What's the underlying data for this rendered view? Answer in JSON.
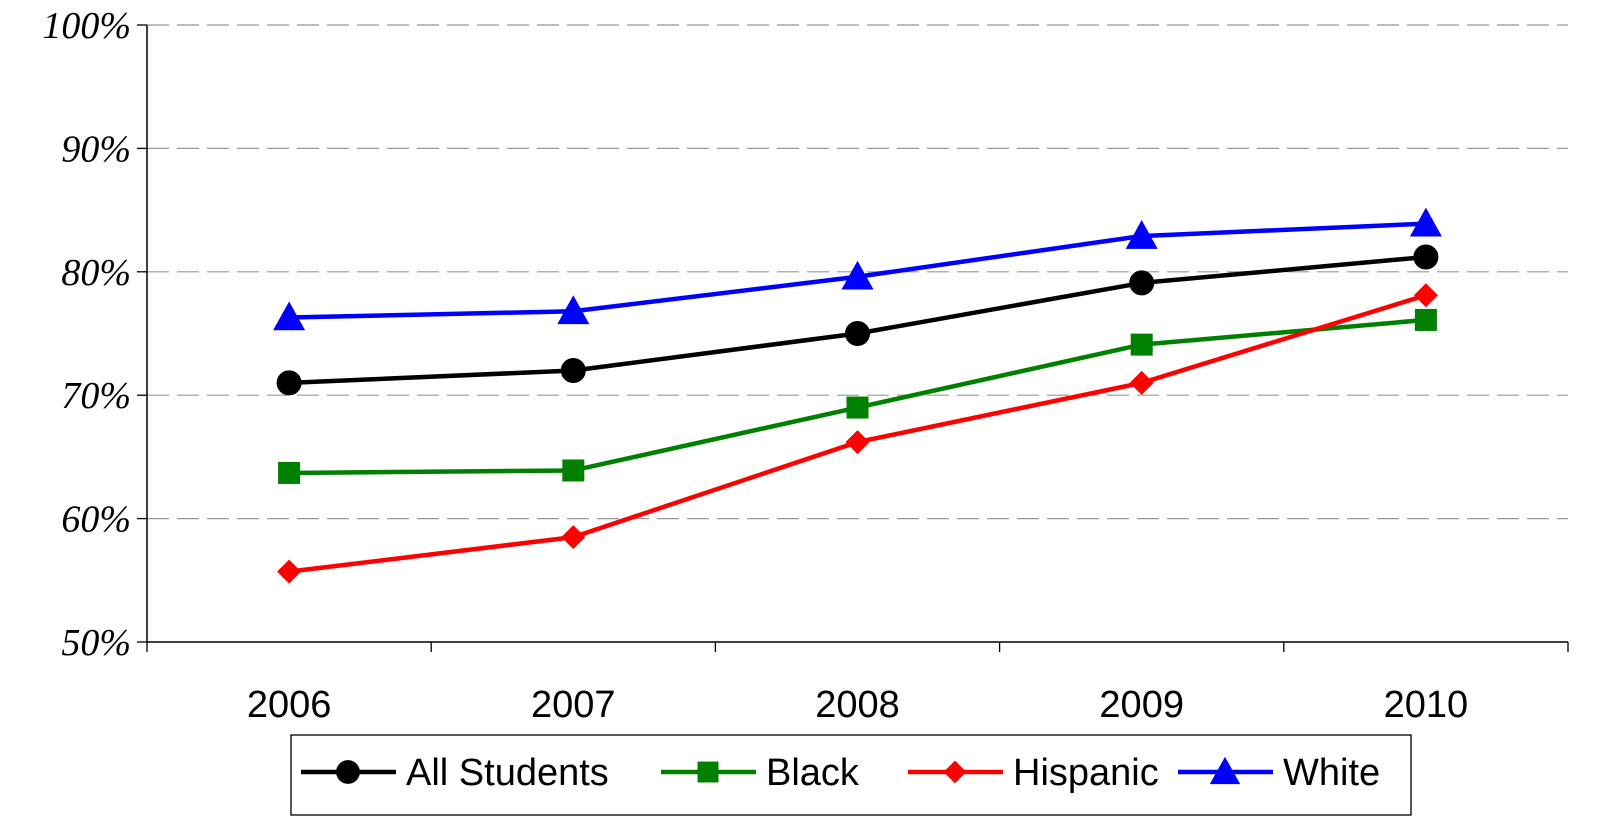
{
  "chart_data": {
    "type": "line",
    "title": "",
    "xlabel": "",
    "ylabel": "",
    "categories": [
      "2006",
      "2007",
      "2008",
      "2009",
      "2010"
    ],
    "ylim": [
      50,
      100
    ],
    "yticks": [
      {
        "value": 100,
        "label": "100%"
      },
      {
        "value": 90,
        "label": "90%"
      },
      {
        "value": 80,
        "label": "80%"
      },
      {
        "value": 70,
        "label": "70%"
      },
      {
        "value": 60,
        "label": "60%"
      },
      {
        "value": 50,
        "label": "50%"
      }
    ],
    "grid": "horizontal dashed",
    "legend_position": "bottom",
    "series": [
      {
        "name": "All Students",
        "color": "#000000",
        "marker": "circle",
        "values": [
          71.0,
          72.0,
          75.0,
          79.1,
          81.2
        ]
      },
      {
        "name": "Black",
        "color": "#008000",
        "marker": "square",
        "values": [
          63.7,
          63.9,
          69.0,
          74.1,
          76.1
        ]
      },
      {
        "name": "Hispanic",
        "color": "#ff0000",
        "marker": "diamond",
        "values": [
          55.7,
          58.5,
          66.2,
          71.0,
          78.1
        ]
      },
      {
        "name": "White",
        "color": "#0000ff",
        "marker": "triangle",
        "values": [
          76.3,
          76.8,
          79.6,
          82.9,
          83.9
        ]
      }
    ]
  }
}
